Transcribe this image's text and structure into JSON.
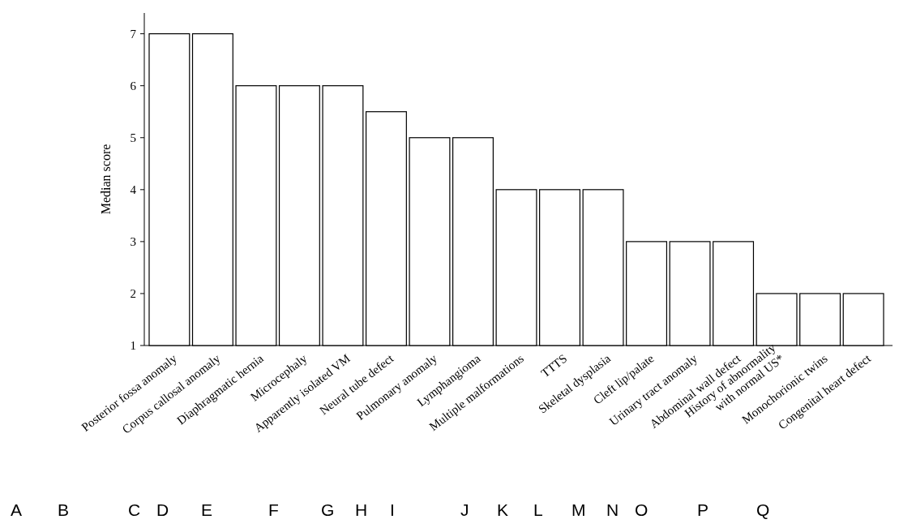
{
  "chart_data": {
    "type": "bar",
    "ylabel": "Median score",
    "categories": [
      "Posterior fossa anomaly",
      "Corpus callosal anomaly",
      "Diaphragmatic hernia",
      "Microcephaly",
      "Apparently isolated VM",
      "Neural tube defect",
      "Pulmonary anomaly",
      "Lymphangioma",
      "Multiple malformations",
      "TTTS",
      "Skeletal dysplasia",
      "Cleft lip/palate",
      "Urinary tract anomaly",
      "Abdominal wall defect",
      "History of abnormality\nwith normal US*",
      "Monochorionic twins",
      "Congenital heart defect"
    ],
    "values": [
      7,
      7,
      6,
      6,
      6,
      5.5,
      5,
      5,
      4,
      4,
      4,
      3,
      3,
      3,
      2,
      2,
      2
    ],
    "color": "#ffffff",
    "ylim": [
      1,
      7.4
    ],
    "yticks": [
      1,
      2,
      3,
      4,
      5,
      6,
      7
    ],
    "annotations": [
      "A",
      "B",
      "C",
      "D",
      "E",
      "F",
      "G",
      "H",
      "I",
      "J",
      "K",
      "L",
      "M",
      "N",
      "O",
      "P",
      "Q"
    ]
  }
}
